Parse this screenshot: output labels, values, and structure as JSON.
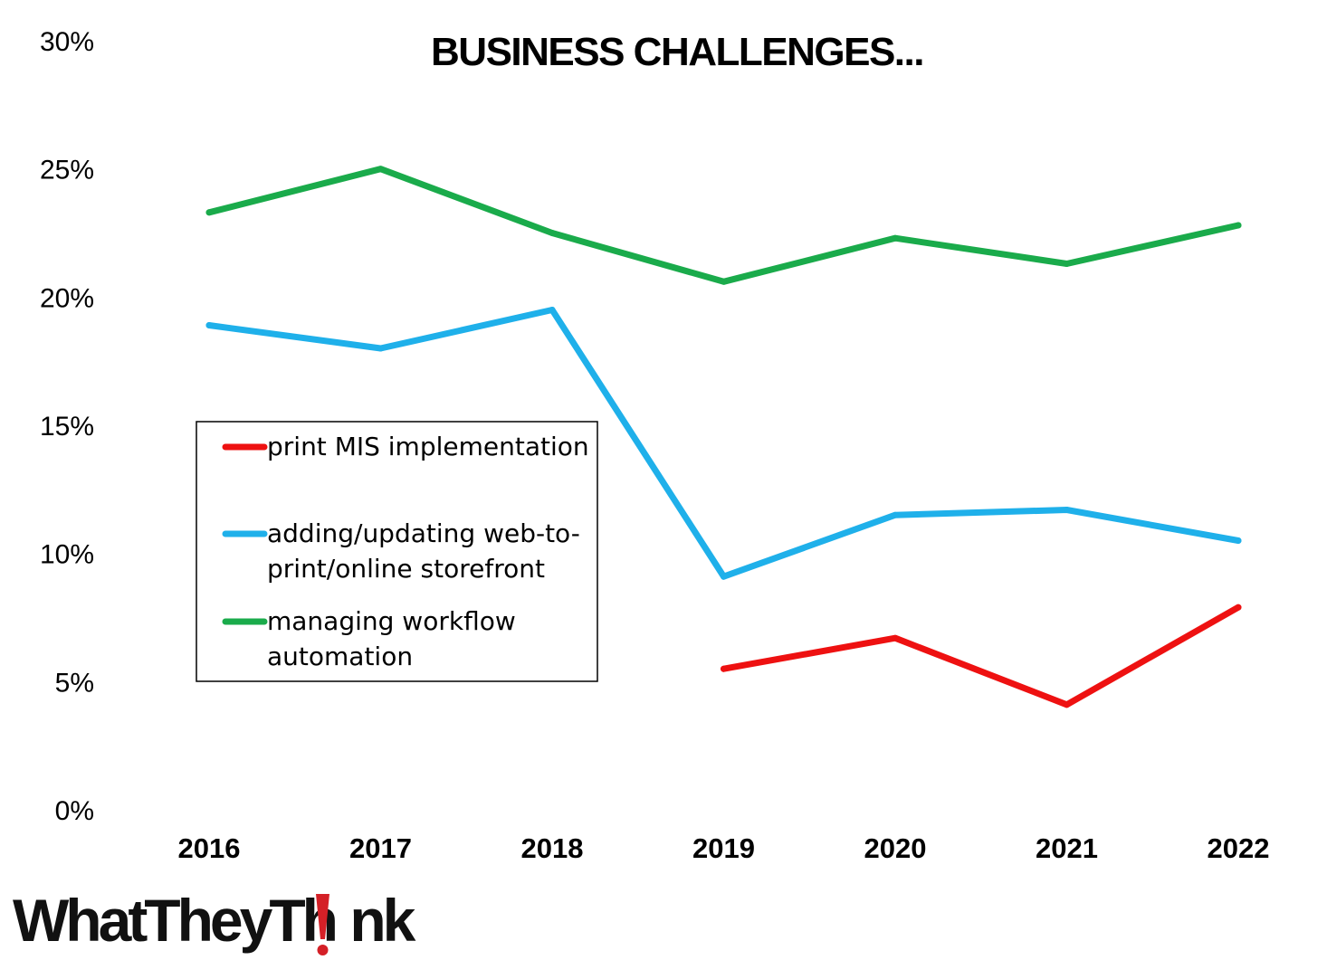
{
  "chart_data": {
    "type": "line",
    "title": "BUSINESS CHALLENGES...",
    "xlabel": "",
    "ylabel": "",
    "categories": [
      "2016",
      "2017",
      "2018",
      "2019",
      "2020",
      "2021",
      "2022"
    ],
    "ylim": [
      0,
      30
    ],
    "y_ticks": [
      0,
      5,
      10,
      15,
      20,
      25,
      30
    ],
    "y_tick_labels": [
      "0%",
      "5%",
      "10%",
      "15%",
      "20%",
      "25%",
      "30%"
    ],
    "grid": false,
    "legend_position": "center-left",
    "series": [
      {
        "name": "print MIS implementation",
        "legend_lines": [
          "print MIS implementation"
        ],
        "color": "#ee1111",
        "values": [
          null,
          null,
          null,
          5.5,
          6.7,
          4.1,
          7.9
        ]
      },
      {
        "name": "adding/updating web-to-print/online storefront",
        "legend_lines": [
          "adding/updating web-to-",
          "print/online storefront"
        ],
        "color": "#1fb0ea",
        "values": [
          18.9,
          18.0,
          19.5,
          9.1,
          11.5,
          11.7,
          10.5
        ]
      },
      {
        "name": "managing workflow automation",
        "legend_lines": [
          "managing workflow",
          "automation"
        ],
        "color": "#1aab4b",
        "values": [
          23.3,
          25.0,
          22.5,
          20.6,
          22.3,
          21.3,
          22.8
        ]
      }
    ]
  },
  "branding": {
    "logo_before": "WhatTheyTh",
    "logo_after": "nk",
    "logo_color": "#111111",
    "logo_accent_color": "#d42027"
  }
}
